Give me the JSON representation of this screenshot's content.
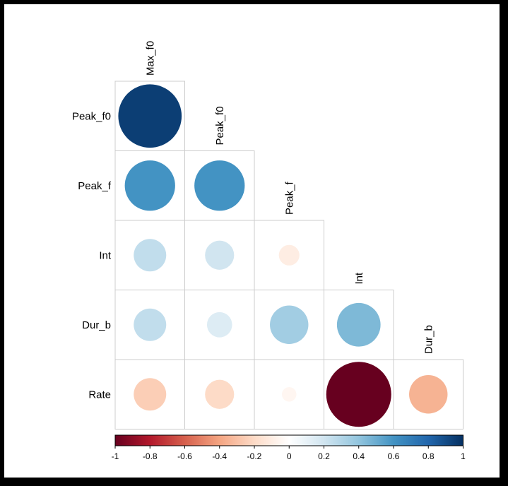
{
  "chart_data": {
    "type": "heatmap",
    "subtype": "correlation-circles-lower-triangle",
    "variables_top": [
      "Max_f0",
      "Peak_f0",
      "Peak_f",
      "Int",
      "Dur_b"
    ],
    "variables_left": [
      "Peak_f0",
      "Peak_f",
      "Int",
      "Dur_b",
      "Rate"
    ],
    "matrix": [
      [
        0.95
      ],
      [
        0.6,
        0.6
      ],
      [
        0.25,
        0.2,
        -0.1
      ],
      [
        0.25,
        0.15,
        0.35,
        0.45
      ],
      [
        -0.25,
        -0.2,
        -0.05,
        -1.0,
        -0.35
      ]
    ],
    "colorbar": {
      "min": -1,
      "max": 1,
      "ticks": [
        "-1",
        "-0.8",
        "-0.6",
        "-0.4",
        "-0.2",
        "0",
        "0.2",
        "0.4",
        "0.6",
        "0.8",
        "1"
      ],
      "placement": "bottom"
    },
    "grid": true
  }
}
